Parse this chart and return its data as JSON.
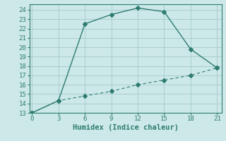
{
  "xlabel": "Humidex (Indice chaleur)",
  "x": [
    0,
    3,
    6,
    9,
    12,
    15,
    18,
    21
  ],
  "y_line1": [
    13,
    14.3,
    22.5,
    23.5,
    24.2,
    23.8,
    19.8,
    17.8
  ],
  "y_line2": [
    13,
    14.3,
    14.8,
    15.3,
    16.0,
    16.5,
    17.0,
    17.8
  ],
  "xlim": [
    -0.3,
    21.5
  ],
  "ylim": [
    13,
    24.6
  ],
  "yticks": [
    13,
    14,
    15,
    16,
    17,
    18,
    19,
    20,
    21,
    22,
    23,
    24
  ],
  "xticks": [
    0,
    3,
    6,
    9,
    12,
    15,
    18,
    21
  ],
  "line_color": "#2e7d6e",
  "bg_color": "#cce8e8",
  "grid_color": "#aacece",
  "label_fontsize": 7.5,
  "tick_fontsize": 6.5
}
